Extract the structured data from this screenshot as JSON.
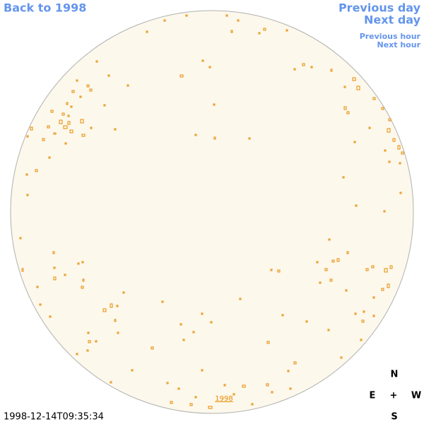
{
  "nav": {
    "back": "Back to 1998",
    "previous_day": "Previous day",
    "next_day": "Next day",
    "previous_hour": "Previous hour",
    "next_hour": "Next hour"
  },
  "year_label": "1998",
  "timestamp": "1998-12-14T09:35:34",
  "compass": {
    "north": "N",
    "east": "E",
    "center": "+",
    "west": "W",
    "south": "S"
  }
}
